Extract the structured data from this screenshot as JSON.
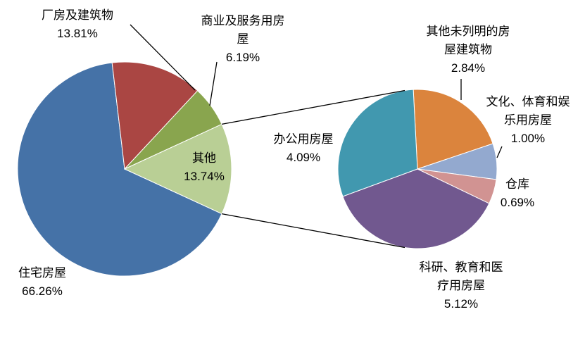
{
  "chart_data": [
    {
      "type": "pie",
      "categories": [
        "住宅房屋",
        "厂房及建筑物",
        "商业及服务用房屋",
        "其他"
      ],
      "values": [
        66.26,
        13.81,
        6.19,
        13.74
      ],
      "value_labels": [
        "66.26%",
        "13.81%",
        "6.19%",
        "13.74%"
      ],
      "colors": [
        "#4572a7",
        "#aa4643",
        "#89a54e",
        "#b9cf95"
      ]
    },
    {
      "type": "pie",
      "categories": [
        "其他未列明的房屋建筑物",
        "文化、体育和娱乐用房屋",
        "仓库",
        "科研、教育和医疗用房屋",
        "办公用房屋"
      ],
      "values": [
        2.84,
        1.0,
        0.69,
        5.12,
        4.09
      ],
      "value_labels": [
        "2.84%",
        "1.00%",
        "0.69%",
        "5.12%",
        "4.09%"
      ],
      "colors": [
        "#db843d",
        "#93a9cf",
        "#d19392",
        "#71588f",
        "#4198af"
      ]
    }
  ]
}
